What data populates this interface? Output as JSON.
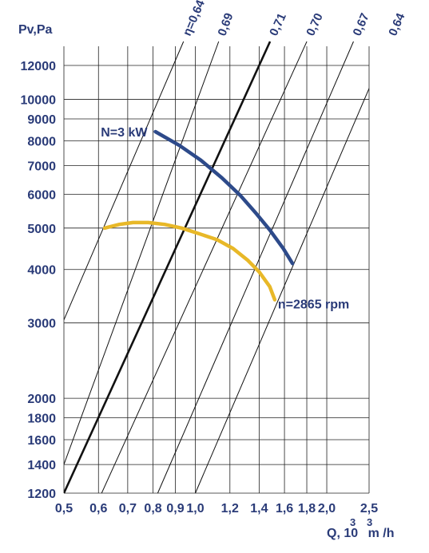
{
  "chart_data": {
    "type": "line",
    "title": "",
    "xlabel": "Q, 10 m /h",
    "xlabel_superscripts": [
      "3",
      "3"
    ],
    "ylabel": "Pv,Pa",
    "x_scale": "log",
    "y_scale": "log",
    "xlim": [
      0.5,
      2.5
    ],
    "ylim": [
      1200,
      12000
    ],
    "x_ticks": [
      0.5,
      0.6,
      0.7,
      0.8,
      0.9,
      1.0,
      1.2,
      1.4,
      1.6,
      1.8,
      2.0,
      2.5
    ],
    "x_tick_labels": [
      "0,5",
      "0,6",
      "0,7",
      "0,8",
      "0,9",
      "1,0",
      "1,2",
      "1,4",
      "1,6",
      "1,8",
      "2,0",
      "2,5"
    ],
    "y_ticks": [
      1200,
      1400,
      1600,
      1800,
      2000,
      3000,
      4000,
      5000,
      6000,
      7000,
      8000,
      9000,
      10000,
      12000
    ],
    "y_tick_labels": [
      "1200",
      "1400",
      "1600",
      "1800",
      "2000",
      "3000",
      "4000",
      "5000",
      "6000",
      "7000",
      "8000",
      "9000",
      "10000",
      "12000"
    ],
    "grid": true,
    "efficiency_lines": [
      {
        "label": "η=0,64",
        "points": [
          [
            0.5,
            3050
          ],
          [
            0.89,
            12000
          ]
        ]
      },
      {
        "label": "0,69",
        "points": [
          [
            0.5,
            1400
          ],
          [
            1.08,
            12000
          ]
        ]
      },
      {
        "label": "0,71",
        "points": [
          [
            0.5,
            1200
          ],
          [
            1.4,
            12000
          ]
        ]
      },
      {
        "label": "0,70",
        "points": [
          [
            0.61,
            1200
          ],
          [
            1.7,
            12000
          ]
        ]
      },
      {
        "label": "0,67",
        "points": [
          [
            0.82,
            1200
          ],
          [
            2.18,
            12000
          ]
        ]
      },
      {
        "label": "0,64",
        "points": [
          [
            1.0,
            1200
          ],
          [
            2.5,
            10600
          ]
        ]
      }
    ],
    "series": [
      {
        "name": "N=3 kW",
        "color": "#2d4a8a",
        "x": [
          0.81,
          0.92,
          1.03,
          1.15,
          1.27,
          1.38,
          1.48,
          1.59,
          1.67
        ],
        "y": [
          8400,
          7800,
          7200,
          6550,
          5950,
          5400,
          4950,
          4480,
          4130
        ]
      },
      {
        "name": "n=2865 rpm",
        "color": "#e8b828",
        "x": [
          0.62,
          0.67,
          0.72,
          0.78,
          0.85,
          0.93,
          1.02,
          1.12,
          1.22,
          1.32,
          1.4,
          1.48,
          1.52
        ],
        "y": [
          5000,
          5100,
          5150,
          5150,
          5100,
          5000,
          4850,
          4700,
          4480,
          4200,
          3950,
          3650,
          3400
        ]
      }
    ]
  }
}
